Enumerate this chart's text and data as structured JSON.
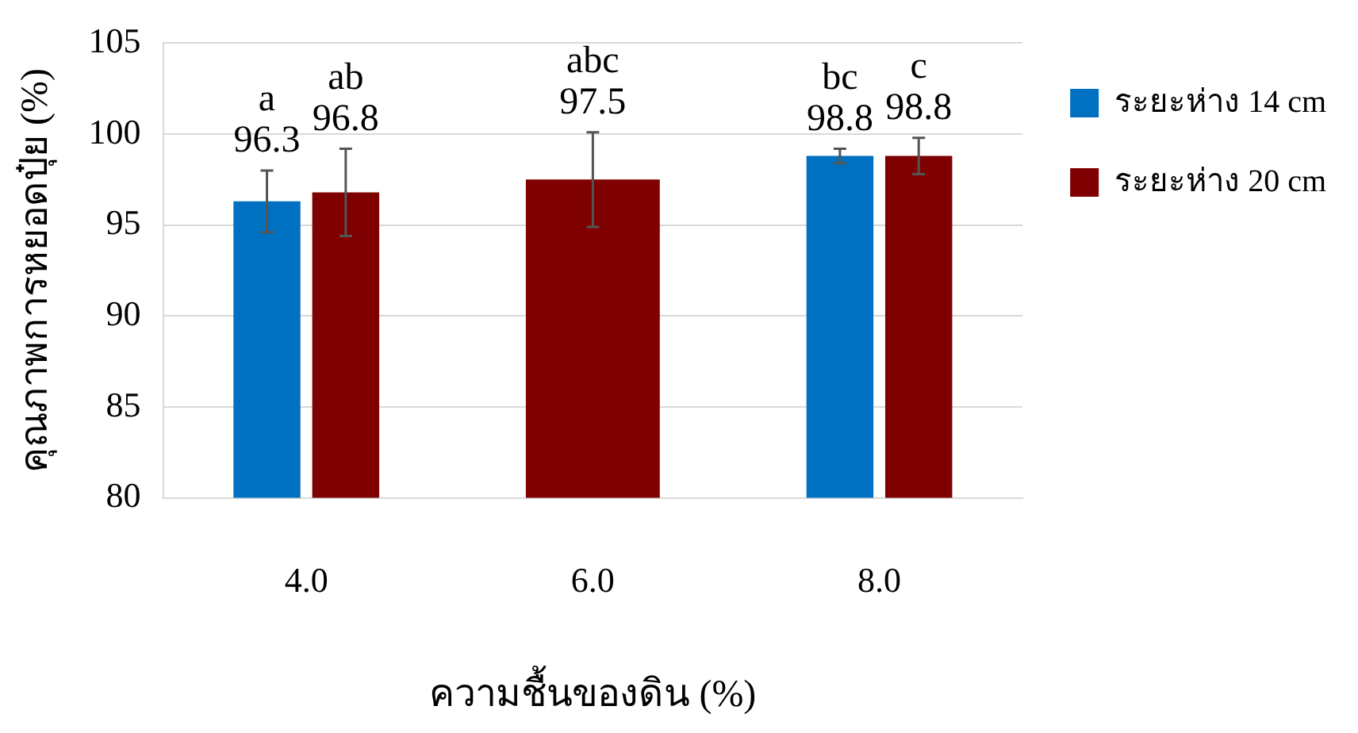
{
  "chart_data": {
    "type": "bar",
    "xlabel": "ความชื้นของดิน (%)",
    "ylabel": "คุณภาพการหยอดปุ๋ย (%)",
    "categories": [
      "4.0",
      "6.0",
      "8.0"
    ],
    "series": [
      {
        "name": "ระยะห่าง 14 cm",
        "color": "#0070c0",
        "values": [
          96.3,
          null,
          98.8
        ],
        "errors": [
          1.7,
          null,
          0.4
        ],
        "value_labels": [
          "a\n96.3",
          null,
          "bc\n98.8"
        ]
      },
      {
        "name": "ระยะห่าง 20 cm",
        "color": "#7f0000",
        "values": [
          96.8,
          97.5,
          98.8
        ],
        "errors": [
          2.4,
          2.6,
          1.0
        ],
        "value_labels": [
          "ab\n96.8",
          "abc\n97.5",
          "c\n98.8"
        ]
      }
    ],
    "ylim": [
      80,
      105
    ],
    "yticks": [
      80,
      85,
      90,
      95,
      100,
      105
    ],
    "grid": "y",
    "legend": "right"
  }
}
